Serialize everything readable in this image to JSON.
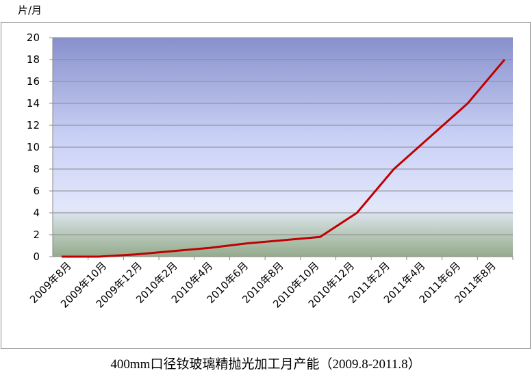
{
  "chart_data": {
    "type": "line",
    "title": "400mm口径钕玻璃精抛光加工月产能（2009.8-2011.8）",
    "y_label": "片/月",
    "categories": [
      "2009年8月",
      "2009年10月",
      "2009年12月",
      "2010年2月",
      "2010年4月",
      "2010年6月",
      "2010年8月",
      "2010年10月",
      "2010年12月",
      "2011年2月",
      "2011年4月",
      "2011年6月",
      "2011年8月"
    ],
    "series": [
      {
        "name": "月产能",
        "color": "#c00000",
        "values": [
          0,
          0,
          0.2,
          0.5,
          0.8,
          1.2,
          1.5,
          1.8,
          4,
          8,
          11,
          14,
          18
        ]
      }
    ],
    "ylim": [
      0,
      20
    ],
    "yticks": [
      0,
      2,
      4,
      6,
      8,
      10,
      12,
      14,
      16,
      18,
      20
    ],
    "grid": true
  }
}
